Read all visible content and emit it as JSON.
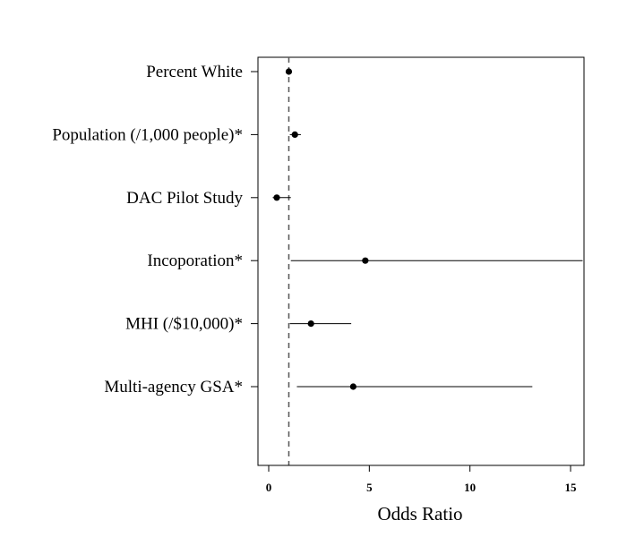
{
  "chart_data": {
    "type": "forest",
    "title": "",
    "xlabel": "Odds Ratio",
    "ylabel": "",
    "xlim": [
      -0.5,
      15.6
    ],
    "xticks": [
      0,
      5,
      10,
      15
    ],
    "reference_line": 1,
    "categories": [
      "Percent White",
      "Population (/1,000 people)*",
      "DAC Pilot Study",
      "Incoporation*",
      "MHI (/$10,000)*",
      "Multi-agency GSA*"
    ],
    "values": [
      1.0,
      1.3,
      0.4,
      4.8,
      2.1,
      4.2
    ],
    "ci_low": [
      0.98,
      1.05,
      0.2,
      1.1,
      1.05,
      1.4
    ],
    "ci_high": [
      1.02,
      1.6,
      1.1,
      15.6,
      4.1,
      13.1
    ],
    "grid": false,
    "legend": "none"
  }
}
